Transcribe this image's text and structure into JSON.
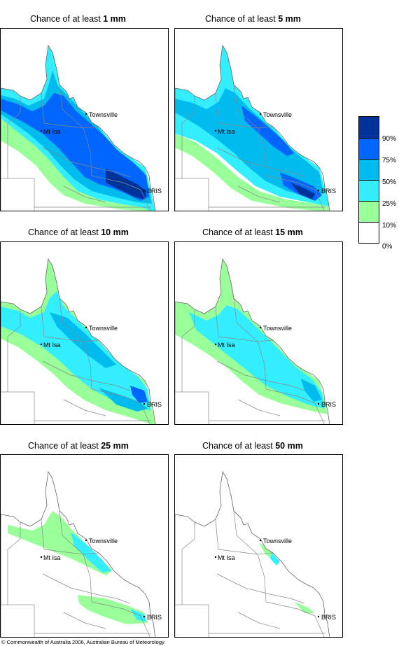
{
  "panels": [
    {
      "title_prefix": "Chance of at least ",
      "title_amount": "1 mm",
      "labels": {
        "town": "Townsville",
        "isa": "Mt Isa",
        "bris": "BRIS"
      }
    },
    {
      "title_prefix": "Chance of at least ",
      "title_amount": "5 mm",
      "labels": {
        "town": "Townsville",
        "isa": "Mt Isa",
        "bris": "BRIS"
      }
    },
    {
      "title_prefix": "Chance of at least ",
      "title_amount": "10 mm",
      "labels": {
        "town": "Townsville",
        "isa": "Mt Isa",
        "bris": "BRIS"
      }
    },
    {
      "title_prefix": "Chance of at least ",
      "title_amount": "15 mm",
      "labels": {
        "town": "Townsville",
        "isa": "Mt Isa",
        "bris": "BRIS"
      }
    },
    {
      "title_prefix": "Chance of at least ",
      "title_amount": "25 mm",
      "labels": {
        "town": "Townsville",
        "isa": "Mt Isa",
        "bris": "BRIS"
      }
    },
    {
      "title_prefix": "Chance of at least ",
      "title_amount": "50 mm",
      "labels": {
        "town": "Townsville",
        "isa": "Mt Isa",
        "bris": "BRIS"
      }
    }
  ],
  "legend": {
    "colors": [
      "#003399",
      "#0066ff",
      "#00bbee",
      "#33eeff",
      "#99ff99",
      "#ffffff"
    ],
    "labels": [
      "90%",
      "75%",
      "50%",
      "25%",
      "10%",
      "0%"
    ]
  },
  "copyright": "© Commonwealth of Australia 2006, Australian Bureau of Meteorology"
}
